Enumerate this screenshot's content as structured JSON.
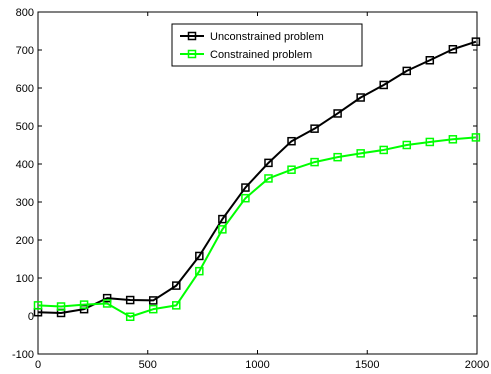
{
  "chart_data": {
    "type": "line",
    "title": "",
    "xlabel": "",
    "ylabel": "",
    "xlim": [
      0,
      2000
    ],
    "ylim": [
      -100,
      800
    ],
    "xticks": [
      0,
      500,
      1000,
      1500,
      2000
    ],
    "yticks": [
      -100,
      0,
      100,
      200,
      300,
      400,
      500,
      600,
      700,
      800
    ],
    "grid": false,
    "legend_position": "top-center",
    "series": [
      {
        "name": "Unconstrained problem",
        "color": "#000000",
        "marker": "square",
        "x": [
          0,
          105,
          210,
          315,
          420,
          525,
          630,
          735,
          840,
          945,
          1050,
          1155,
          1260,
          1365,
          1470,
          1575,
          1680,
          1785,
          1890,
          1995
        ],
        "y": [
          10,
          8,
          18,
          47,
          42,
          41,
          80,
          158,
          255,
          338,
          403,
          460,
          493,
          533,
          575,
          608,
          645,
          673,
          702,
          722
        ]
      },
      {
        "name": "Constrained problem",
        "color": "#00ff00",
        "marker": "square",
        "x": [
          0,
          105,
          210,
          315,
          420,
          525,
          630,
          735,
          840,
          945,
          1050,
          1155,
          1260,
          1365,
          1470,
          1575,
          1680,
          1785,
          1890,
          1995
        ],
        "y": [
          28,
          25,
          30,
          33,
          -2,
          18,
          28,
          118,
          228,
          310,
          362,
          385,
          405,
          418,
          428,
          437,
          450,
          458,
          465,
          470
        ]
      }
    ]
  }
}
